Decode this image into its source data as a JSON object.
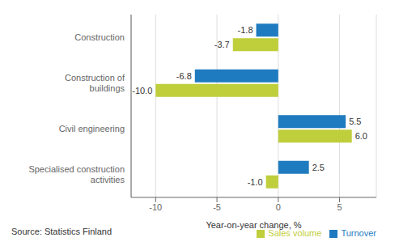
{
  "chart_data": {
    "type": "bar",
    "orientation": "horizontal",
    "categories": [
      "Construction",
      "Construction of buildings",
      "Civil engineering",
      "Specialised construction activities"
    ],
    "series": [
      {
        "name": "Turnover",
        "color": "#1f7bbf",
        "values": [
          -1.8,
          -6.8,
          5.5,
          2.5
        ],
        "value_labels": [
          "-1.8",
          "-6.8",
          "5.5",
          "2.5"
        ]
      },
      {
        "name": "Sales volume",
        "color": "#bfce3b",
        "values": [
          -3.7,
          -10.0,
          6.0,
          -1.0
        ],
        "value_labels": [
          "-3.7",
          "-10.0",
          "6.0",
          "-1.0"
        ]
      }
    ],
    "xlabel": "Year-on-year change, %",
    "xlim": [
      -12,
      8
    ],
    "xticks": [
      -10,
      -5,
      0,
      5
    ],
    "grid": true,
    "legend": "lower right",
    "data_labels": true,
    "annotations": [
      "Source: Statistics Finland"
    ]
  }
}
